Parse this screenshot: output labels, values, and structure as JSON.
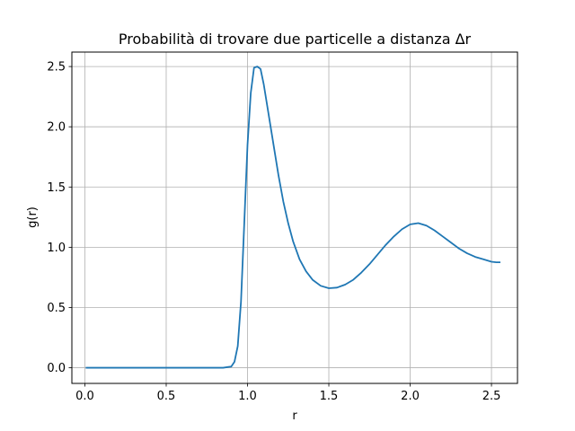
{
  "chart_data": {
    "type": "line",
    "title": "Probabilità di trovare due particelle a distanza Δr",
    "xlabel": "r",
    "ylabel": "g(r)",
    "xlim": [
      -0.08,
      2.66
    ],
    "ylim": [
      -0.13,
      2.62
    ],
    "grid": true,
    "xticks": [
      0.0,
      0.5,
      1.0,
      1.5,
      2.0,
      2.5
    ],
    "xtick_labels": [
      "0.0",
      "0.5",
      "1.0",
      "1.5",
      "2.0",
      "2.5"
    ],
    "yticks": [
      0.0,
      0.5,
      1.0,
      1.5,
      2.0,
      2.5
    ],
    "ytick_labels": [
      "0.0",
      "0.5",
      "1.0",
      "1.5",
      "2.0",
      "2.5"
    ],
    "series": [
      {
        "color": "#1f77b4",
        "x": [
          0.01,
          0.3,
          0.6,
          0.85,
          0.9,
          0.92,
          0.94,
          0.96,
          0.98,
          1.0,
          1.02,
          1.04,
          1.06,
          1.08,
          1.1,
          1.13,
          1.16,
          1.19,
          1.22,
          1.25,
          1.28,
          1.32,
          1.36,
          1.4,
          1.45,
          1.5,
          1.55,
          1.6,
          1.65,
          1.7,
          1.75,
          1.8,
          1.85,
          1.9,
          1.95,
          2.0,
          2.05,
          2.1,
          2.15,
          2.2,
          2.25,
          2.3,
          2.35,
          2.4,
          2.45,
          2.5,
          2.53,
          2.55
        ],
        "y": [
          0.0,
          0.0,
          0.0,
          0.0,
          0.01,
          0.05,
          0.18,
          0.55,
          1.2,
          1.85,
          2.28,
          2.49,
          2.5,
          2.48,
          2.35,
          2.1,
          1.85,
          1.6,
          1.38,
          1.2,
          1.05,
          0.9,
          0.8,
          0.73,
          0.68,
          0.66,
          0.665,
          0.69,
          0.73,
          0.79,
          0.86,
          0.94,
          1.02,
          1.09,
          1.15,
          1.19,
          1.2,
          1.18,
          1.14,
          1.09,
          1.04,
          0.99,
          0.95,
          0.92,
          0.9,
          0.88,
          0.875,
          0.875
        ]
      }
    ]
  }
}
